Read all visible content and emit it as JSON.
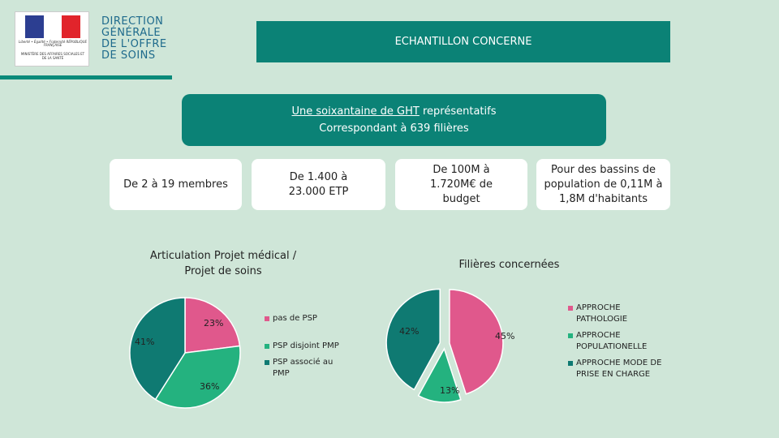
{
  "logo": {
    "republique": "Liberté • Égalité • Fraternité RÉPUBLIQUE FRANÇAISE",
    "ministere": "MINISTÈRE DES AFFAIRES SOCIALES ET DE LA SANTÉ",
    "lines": [
      "DIRECTION",
      "GÉNÉRALE",
      "DE L'OFFRE",
      "DE SOINS"
    ]
  },
  "header": {
    "title": "ECHANTILLON CONCERNE"
  },
  "summary": {
    "line1_underlined": "Une soixantaine de GHT",
    "line1_rest": " représentatifs",
    "line2": "Correspondant à 639 filières"
  },
  "cards": [
    {
      "text": "De 2 à 19 membres"
    },
    {
      "text": "De 1.400 à 23.000 ETP"
    },
    {
      "text": "De 100M à 1.720M€ de budget"
    },
    {
      "text": "Pour des bassins de population de 0,11M à 1,8M d'habitants"
    }
  ],
  "colors": {
    "pink": "#e0588c",
    "green": "#24b27f",
    "teal": "#0f7a72"
  },
  "chart_data": [
    {
      "type": "pie",
      "title": "Articulation Projet médical / Projet de soins",
      "categories": [
        "pas de PSP",
        "PSP disjoint PMP",
        "PSP associé au PMP"
      ],
      "values": [
        23,
        36,
        41
      ],
      "labels": [
        "23%",
        "36%",
        "41%"
      ],
      "colors": [
        "#e0588c",
        "#24b27f",
        "#0f7a72"
      ],
      "legend": "right"
    },
    {
      "type": "pie",
      "title": "Filières concernées",
      "categories": [
        "APPROCHE PATHOLOGIE",
        "APPROCHE POPULATIONELLE",
        "APPROCHE MODE DE PRISE EN CHARGE"
      ],
      "values": [
        45,
        13,
        42
      ],
      "labels": [
        "45%",
        "13%",
        "42%"
      ],
      "colors": [
        "#e0588c",
        "#24b27f",
        "#0f7a72"
      ],
      "exploded": true,
      "legend": "right"
    }
  ]
}
